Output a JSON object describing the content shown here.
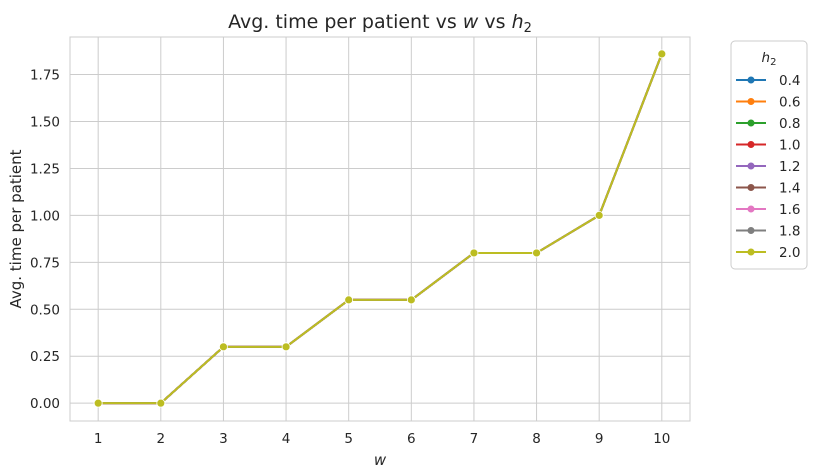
{
  "chart_data": {
    "type": "line",
    "title": "Avg. time per patient vs",
    "title_var1": "w",
    "title_mid": "vs",
    "title_var2": "h",
    "title_var2_sub": "2",
    "xlabel": "w",
    "ylabel": "Avg. time per patient",
    "x": [
      1,
      2,
      3,
      4,
      5,
      6,
      7,
      8,
      9,
      10
    ],
    "xlim": [
      0.55,
      10.45
    ],
    "ylim": [
      -0.095,
      1.95
    ],
    "yticks": [
      0.0,
      0.25,
      0.5,
      0.75,
      1.0,
      1.25,
      1.5,
      1.75
    ],
    "ytick_labels": [
      "0.00",
      "0.25",
      "0.50",
      "0.75",
      "1.00",
      "1.25",
      "1.50",
      "1.75"
    ],
    "xtick_labels": [
      "1",
      "2",
      "3",
      "4",
      "5",
      "6",
      "7",
      "8",
      "9",
      "10"
    ],
    "grid": true,
    "legend": {
      "title": "h",
      "title_sub": "2",
      "placement": "outside-top-right"
    },
    "series": [
      {
        "name": "0.4",
        "color": "#1f77b4",
        "values": [
          0.0,
          0.0,
          0.3,
          0.3,
          0.55,
          0.55,
          0.8,
          0.8,
          1.0,
          1.86
        ]
      },
      {
        "name": "0.6",
        "color": "#ff7f0e",
        "values": [
          0.0,
          0.0,
          0.3,
          0.3,
          0.55,
          0.55,
          0.8,
          0.8,
          1.0,
          1.86
        ]
      },
      {
        "name": "0.8",
        "color": "#2ca02c",
        "values": [
          0.0,
          0.0,
          0.3,
          0.3,
          0.55,
          0.55,
          0.8,
          0.8,
          1.0,
          1.86
        ]
      },
      {
        "name": "1.0",
        "color": "#d62728",
        "values": [
          0.0,
          0.0,
          0.3,
          0.3,
          0.55,
          0.55,
          0.8,
          0.8,
          1.0,
          1.86
        ]
      },
      {
        "name": "1.2",
        "color": "#9467bd",
        "values": [
          0.0,
          0.0,
          0.3,
          0.3,
          0.55,
          0.55,
          0.8,
          0.8,
          1.0,
          1.86
        ]
      },
      {
        "name": "1.4",
        "color": "#8c564b",
        "values": [
          0.0,
          0.0,
          0.3,
          0.3,
          0.55,
          0.55,
          0.8,
          0.8,
          1.0,
          1.86
        ]
      },
      {
        "name": "1.6",
        "color": "#e377c2",
        "values": [
          0.0,
          0.0,
          0.3,
          0.3,
          0.55,
          0.55,
          0.8,
          0.8,
          1.0,
          1.86
        ]
      },
      {
        "name": "1.8",
        "color": "#7f7f7f",
        "values": [
          0.0,
          0.0,
          0.3,
          0.3,
          0.55,
          0.55,
          0.8,
          0.8,
          1.0,
          1.86
        ]
      },
      {
        "name": "2.0",
        "color": "#bcbd22",
        "values": [
          0.0,
          0.0,
          0.3,
          0.3,
          0.55,
          0.55,
          0.8,
          0.8,
          1.0,
          1.86
        ]
      }
    ]
  }
}
